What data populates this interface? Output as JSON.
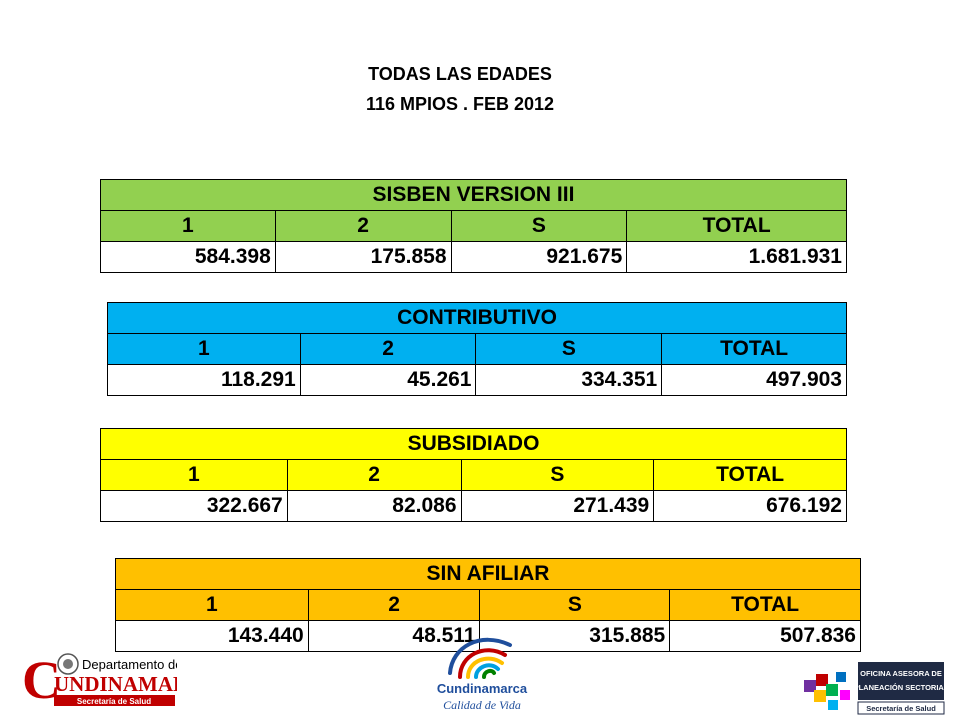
{
  "heading": {
    "line1": "TODAS  LAS  EDADES",
    "line2": "116 MPIOS . FEB 2012"
  },
  "tables": [
    {
      "title": "SISBEN VERSION III",
      "color": "#92d050",
      "headers": [
        "1",
        "2",
        "S",
        "TOTAL"
      ],
      "values": [
        "584.398",
        "175.858",
        "921.675",
        "1.681.931"
      ]
    },
    {
      "title": "CONTRIBUTIVO",
      "color": "#00b0f0",
      "headers": [
        "1",
        "2",
        "S",
        "TOTAL"
      ],
      "values": [
        "118.291",
        "45.261",
        "334.351",
        "497.903"
      ]
    },
    {
      "title": "SUBSIDIADO",
      "color": "#ffff00",
      "headers": [
        "1",
        "2",
        "S",
        "TOTAL"
      ],
      "values": [
        "322.667",
        "82.086",
        "271.439",
        "676.192"
      ]
    },
    {
      "title": "SIN AFILIAR",
      "color": "#ffc000",
      "headers": [
        "1",
        "2",
        "S",
        "TOTAL"
      ],
      "values": [
        "143.440",
        "48.511",
        "315.885",
        "507.836"
      ]
    }
  ],
  "logos": {
    "left": {
      "line1": "Departamento de",
      "line2": "UNDINAMARCA",
      "initial": "C",
      "sub": "Secretaría de Salud"
    },
    "center": {
      "name": "Cundinamarca",
      "tagline": "Calidad de Vida"
    },
    "right": {
      "line1": "OFICINA ASESORA DE",
      "line2": "PLANEACIÓN SECTORIAL",
      "sub": "Secretaría de Salud"
    }
  }
}
